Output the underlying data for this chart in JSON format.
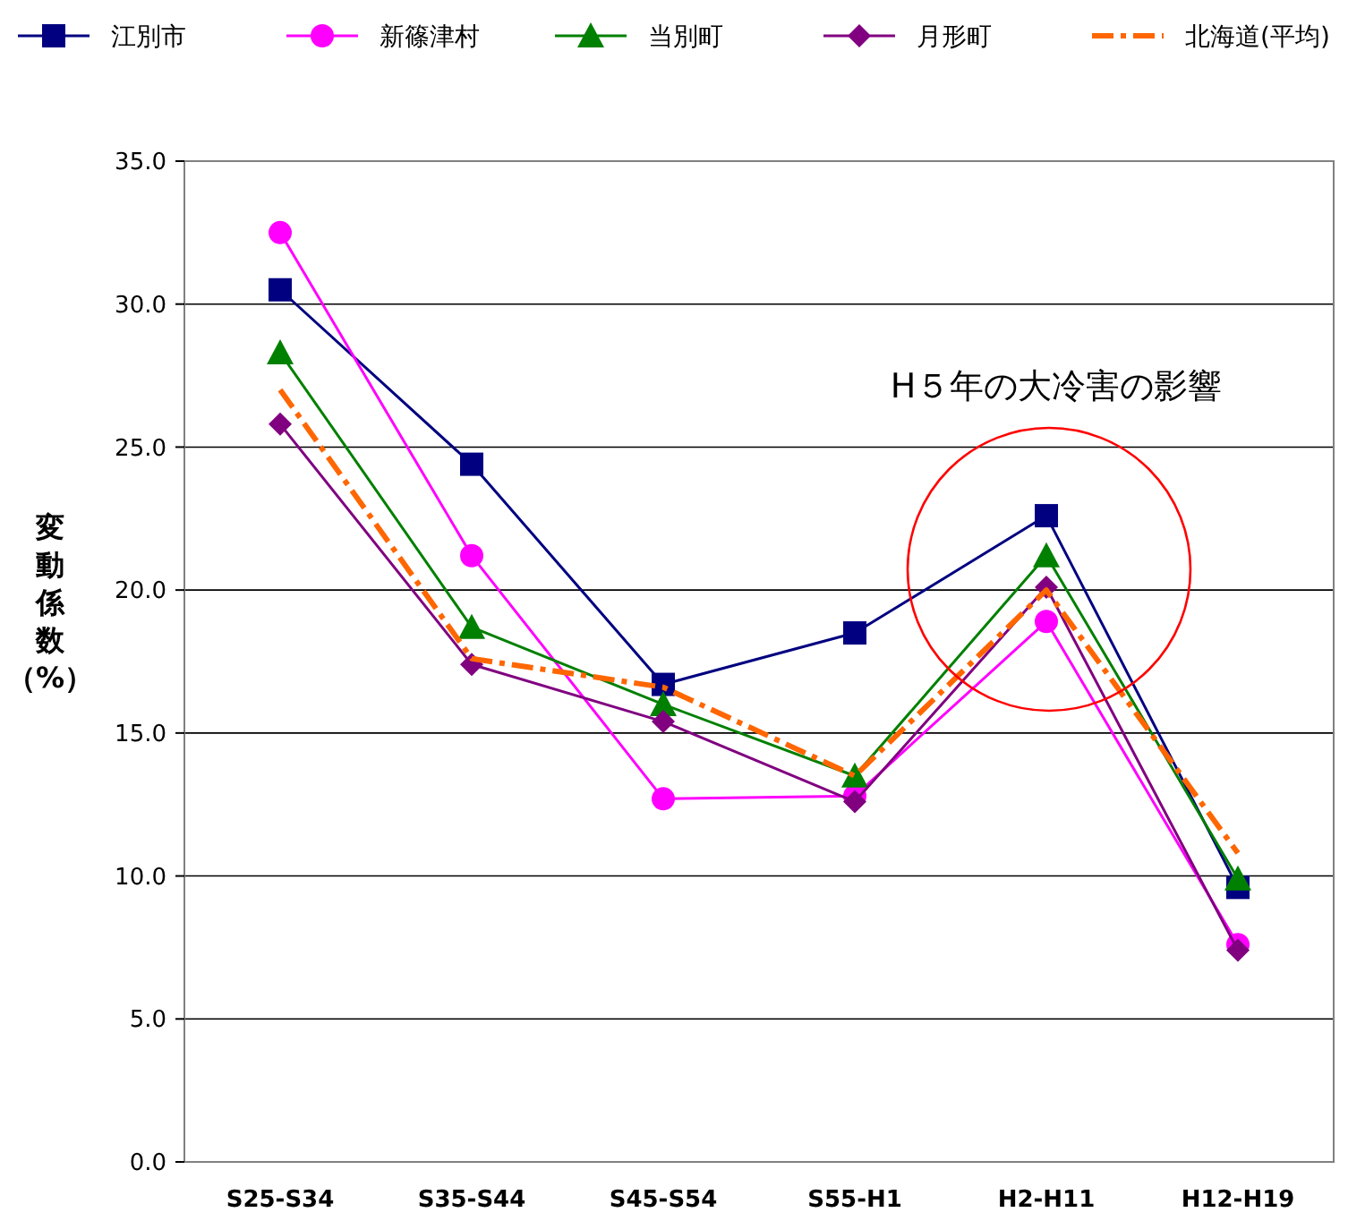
{
  "chart_data": {
    "type": "line",
    "ylabel": "変動係数（%）",
    "categories": [
      "S25-S34",
      "S35-S44",
      "S45-S54",
      "S55-H1",
      "H2-H11",
      "H12-H19"
    ],
    "series": [
      {
        "name": "江別市",
        "color": "#000080",
        "marker": "square",
        "line_style": "solid",
        "values": [
          30.5,
          24.4,
          16.7,
          18.5,
          22.6,
          9.6
        ]
      },
      {
        "name": "新篠津村",
        "color": "#ff00ff",
        "marker": "circle",
        "line_style": "solid",
        "values": [
          32.5,
          21.2,
          12.7,
          12.8,
          18.9,
          7.6
        ]
      },
      {
        "name": "当別町",
        "color": "#008000",
        "marker": "triangle",
        "line_style": "solid",
        "values": [
          28.3,
          18.7,
          16.0,
          13.5,
          21.2,
          9.9
        ]
      },
      {
        "name": "月形町",
        "color": "#800080",
        "marker": "diamond",
        "line_style": "solid",
        "values": [
          25.8,
          17.4,
          15.4,
          12.6,
          20.1,
          7.4
        ]
      },
      {
        "name": "北海道(平均)",
        "color": "#ff6600",
        "marker": "none",
        "line_style": "dashdot",
        "values": [
          27.0,
          17.6,
          16.6,
          13.5,
          20.0,
          10.8
        ]
      }
    ],
    "ylim": [
      0,
      35
    ],
    "yticks": [
      {
        "value": 0,
        "label": "0.0"
      },
      {
        "value": 5,
        "label": "5.0"
      },
      {
        "value": 10,
        "label": "10.0"
      },
      {
        "value": 15,
        "label": "15.0"
      },
      {
        "value": 20,
        "label": "20.0"
      },
      {
        "value": 25,
        "label": "25.0"
      },
      {
        "value": 30,
        "label": "30.0"
      },
      {
        "value": 35,
        "label": "35.0"
      }
    ],
    "grid": "y",
    "legend": "top",
    "annotations": [
      "H５年の大冷害の影響"
    ]
  }
}
